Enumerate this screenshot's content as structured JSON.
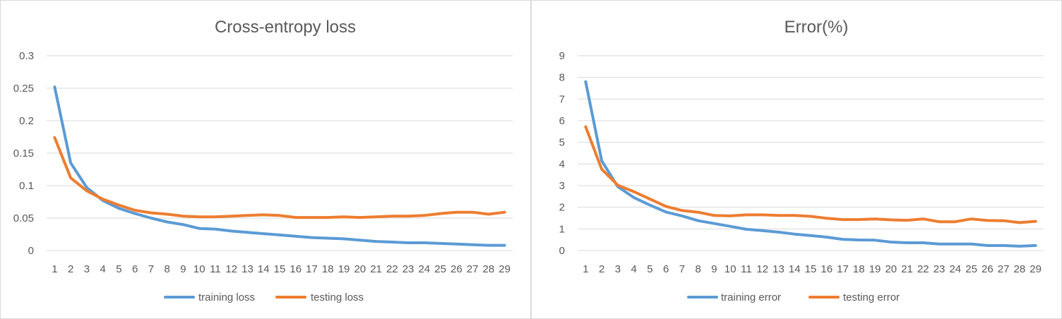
{
  "chart_data": [
    {
      "type": "line",
      "title": "Cross-entropy loss",
      "xlabel": "",
      "ylabel": "",
      "categories": [
        "1",
        "2",
        "3",
        "4",
        "5",
        "6",
        "7",
        "8",
        "9",
        "10",
        "11",
        "12",
        "13",
        "14",
        "15",
        "16",
        "17",
        "18",
        "19",
        "20",
        "21",
        "22",
        "23",
        "24",
        "25",
        "26",
        "27",
        "28",
        "29"
      ],
      "ylim": [
        0,
        0.3
      ],
      "yticks": [
        "0",
        "0.05",
        "0.1",
        "0.15",
        "0.2",
        "0.25",
        "0.3"
      ],
      "ytick_values": [
        0,
        0.05,
        0.1,
        0.15,
        0.2,
        0.25,
        0.3
      ],
      "grid": true,
      "legend_position": "bottom",
      "series": [
        {
          "name": "training loss",
          "color": "#5B9BD5",
          "values": [
            0.252,
            0.135,
            0.097,
            0.077,
            0.065,
            0.057,
            0.05,
            0.044,
            0.04,
            0.034,
            0.033,
            0.03,
            0.028,
            0.026,
            0.024,
            0.022,
            0.02,
            0.019,
            0.018,
            0.016,
            0.014,
            0.013,
            0.012,
            0.012,
            0.011,
            0.01,
            0.009,
            0.008,
            0.008
          ]
        },
        {
          "name": "testing loss",
          "color": "#ED7D31",
          "values": [
            0.174,
            0.112,
            0.092,
            0.079,
            0.07,
            0.062,
            0.058,
            0.056,
            0.053,
            0.052,
            0.052,
            0.053,
            0.054,
            0.055,
            0.054,
            0.051,
            0.051,
            0.051,
            0.052,
            0.051,
            0.052,
            0.053,
            0.053,
            0.054,
            0.057,
            0.059,
            0.059,
            0.056,
            0.059
          ]
        }
      ]
    },
    {
      "type": "line",
      "title": "Error(%)",
      "xlabel": "",
      "ylabel": "",
      "categories": [
        "1",
        "2",
        "3",
        "4",
        "5",
        "6",
        "7",
        "8",
        "9",
        "10",
        "11",
        "12",
        "13",
        "14",
        "15",
        "16",
        "17",
        "18",
        "19",
        "20",
        "21",
        "22",
        "23",
        "24",
        "25",
        "26",
        "27",
        "28",
        "29"
      ],
      "ylim": [
        0,
        9
      ],
      "yticks": [
        "0",
        "1",
        "2",
        "3",
        "4",
        "5",
        "6",
        "7",
        "8",
        "9"
      ],
      "ytick_values": [
        0,
        1,
        2,
        3,
        4,
        5,
        6,
        7,
        8,
        9
      ],
      "grid": true,
      "legend_position": "bottom",
      "series": [
        {
          "name": "training error",
          "color": "#5B9BD5",
          "values": [
            7.8,
            4.15,
            2.95,
            2.45,
            2.1,
            1.78,
            1.6,
            1.38,
            1.25,
            1.12,
            0.98,
            0.92,
            0.85,
            0.76,
            0.69,
            0.62,
            0.52,
            0.49,
            0.48,
            0.39,
            0.36,
            0.36,
            0.3,
            0.3,
            0.3,
            0.23,
            0.23,
            0.2,
            0.23
          ]
        },
        {
          "name": "testing error",
          "color": "#ED7D31",
          "values": [
            5.72,
            3.76,
            3.02,
            2.72,
            2.38,
            2.04,
            1.85,
            1.77,
            1.62,
            1.6,
            1.65,
            1.65,
            1.62,
            1.62,
            1.58,
            1.49,
            1.43,
            1.43,
            1.46,
            1.42,
            1.4,
            1.46,
            1.33,
            1.33,
            1.46,
            1.39,
            1.38,
            1.29,
            1.35
          ]
        }
      ]
    }
  ]
}
